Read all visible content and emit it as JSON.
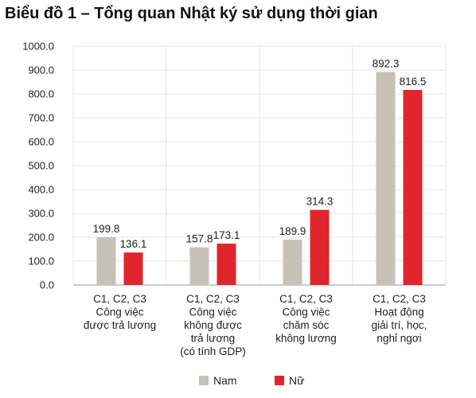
{
  "chart_data": {
    "type": "bar",
    "title": "Biểu đồ 1 – Tổng quan Nhật ký sử dụng thời gian",
    "categories": [
      [
        "C1, C2, C3",
        "Công việc",
        "được trả lương"
      ],
      [
        "C1, C2, C3",
        "Công việc",
        "không được",
        "trả lương",
        "(có tính GDP)"
      ],
      [
        "C1, C2, C3",
        "Công việc",
        "chăm sóc",
        "không lương"
      ],
      [
        "C1, C2, C3",
        "Hoạt động",
        "giải trí, học,",
        "nghỉ ngơi"
      ]
    ],
    "series": [
      {
        "name": "Nam",
        "color": "#c8c2b6",
        "values": [
          199.8,
          157.8,
          189.9,
          892.3
        ],
        "labels": [
          "199.8",
          "157.8",
          "189.9",
          "892.3"
        ]
      },
      {
        "name": "Nữ",
        "color": "#e0262c",
        "values": [
          136.1,
          173.1,
          314.3,
          816.5
        ],
        "labels": [
          "136.1",
          "173.1",
          "314.3",
          "816.5"
        ]
      }
    ],
    "ylim": [
      0,
      1000
    ],
    "yticks": [
      "0.0",
      "100.0",
      "200.0",
      "300.0",
      "400.0",
      "500.0",
      "600.0",
      "700.0",
      "800.0",
      "900.0",
      "1000.0"
    ],
    "grid": true,
    "legend": "bottom-center"
  }
}
